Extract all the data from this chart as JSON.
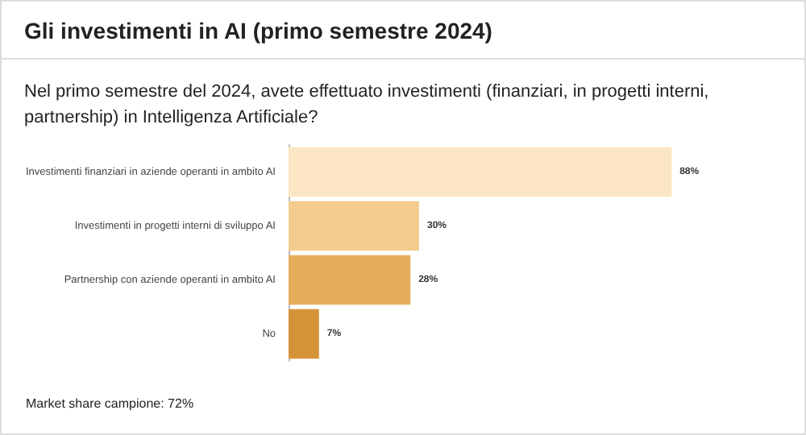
{
  "chart_data": {
    "type": "bar",
    "orientation": "horizontal",
    "title": "Gli investimenti in AI (primo semestre 2024)",
    "subtitle": "Nel primo semestre del 2024, avete effettuato investimenti (finanziari, in progetti interni, partnership) in Intelligenza Artificiale?",
    "categories": [
      "Investimenti finanziari in aziende operanti in ambito AI",
      "Investimenti in progetti interni di sviluppo AI",
      "Partnership con aziende operanti in ambito AI",
      "No"
    ],
    "values": [
      88,
      30,
      28,
      7
    ],
    "colors": [
      "#fce5c4",
      "#f4cb8f",
      "#e6ad5c",
      "#d69237"
    ],
    "value_labels": [
      "88%",
      "30%",
      "28%",
      "7%"
    ],
    "annotations": [
      "Market share campione: 72%"
    ]
  }
}
